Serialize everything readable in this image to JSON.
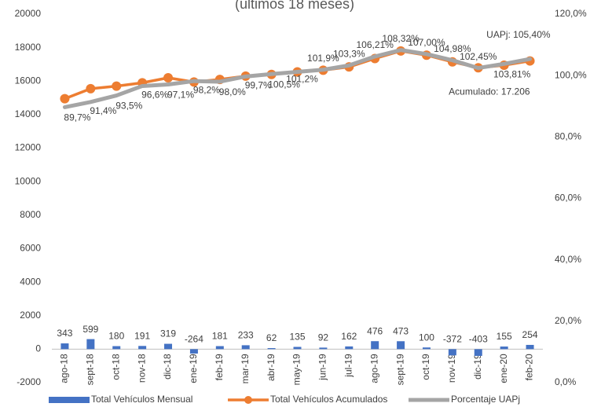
{
  "chart_data": {
    "type": "bar-line",
    "title": "(últimos 18 meses)",
    "categories": [
      "ago-18",
      "sept-18",
      "oct-18",
      "nov-18",
      "dic-18",
      "ene-19",
      "feb-19",
      "mar-19",
      "abr-19",
      "may-19",
      "jun-19",
      "jul-19",
      "ago-19",
      "sept-19",
      "oct-19",
      "nov-19",
      "dic-19",
      "ene-20",
      "feb-20"
    ],
    "series": [
      {
        "name": "Total Vehículos Mensual",
        "color": "#4472c4",
        "kind": "bar",
        "values": [
          343,
          599,
          180,
          191,
          319,
          -264,
          181,
          233,
          62,
          135,
          92,
          162,
          476,
          473,
          100,
          -372,
          -403,
          155,
          254
        ]
      },
      {
        "name": "Total Vehículos Acumulados",
        "color": "#ed7d31",
        "kind": "line",
        "values": [
          14950,
          15550,
          15700,
          15900,
          16200,
          15950,
          16100,
          16300,
          16400,
          16550,
          16650,
          16850,
          17350,
          17800,
          17550,
          17150,
          16800,
          16950,
          17206
        ],
        "value_labels": [
          null,
          null,
          null,
          null,
          null,
          null,
          null,
          null,
          null,
          null,
          null,
          null,
          null,
          null,
          null,
          null,
          null,
          null,
          "Acumulado: 17.206"
        ]
      },
      {
        "name": "Porcentaje UAPj",
        "color": "#a5a5a5",
        "kind": "line",
        "axis": "y2",
        "values": [
          89.7,
          91.4,
          93.5,
          96.6,
          97.1,
          98.2,
          98.0,
          99.7,
          100.5,
          101.2,
          101.9,
          103.3,
          106.21,
          108.32,
          107.0,
          104.98,
          102.45,
          103.81,
          105.4
        ],
        "value_labels": [
          "89,7%",
          "91,4%",
          "93,5%",
          "96,6%",
          "97,1%",
          "98,2%",
          "98,0%",
          "99,7%",
          "100,5%",
          "101,2%",
          "101,9%",
          "103,3%",
          "106,21%",
          "108,32%",
          "107,00%",
          "104,98%",
          "102,45%",
          "103,81%",
          "UAPj: 105,40%"
        ]
      }
    ],
    "ylim": [
      -2000,
      20000
    ],
    "yticks": [
      -2000,
      0,
      2000,
      4000,
      6000,
      8000,
      10000,
      12000,
      14000,
      16000,
      18000,
      20000
    ],
    "y2lim": [
      0,
      120
    ],
    "y2ticks": [
      {
        "value": 0,
        "label": "0,0%"
      },
      {
        "value": 20,
        "label": "20,0%"
      },
      {
        "value": 40,
        "label": "40,0%"
      },
      {
        "value": 60,
        "label": "60,0%"
      },
      {
        "value": 80,
        "label": "80,0%"
      },
      {
        "value": 100,
        "label": "100,0%"
      },
      {
        "value": 120,
        "label": "120,0%"
      }
    ],
    "grid": false,
    "legend": "bottom"
  }
}
